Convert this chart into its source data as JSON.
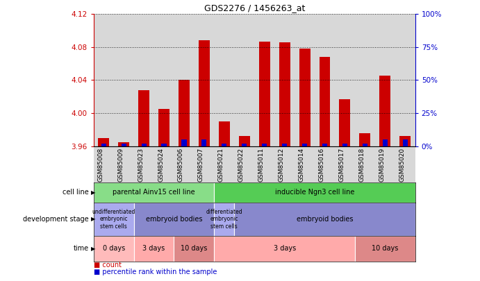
{
  "title": "GDS2276 / 1456263_at",
  "samples": [
    "GSM85008",
    "GSM85009",
    "GSM85023",
    "GSM85024",
    "GSM85006",
    "GSM85007",
    "GSM85021",
    "GSM85022",
    "GSM85011",
    "GSM85012",
    "GSM85014",
    "GSM85016",
    "GSM85017",
    "GSM85018",
    "GSM85019",
    "GSM85020"
  ],
  "counts": [
    3.97,
    3.965,
    4.028,
    4.005,
    4.04,
    4.088,
    3.99,
    3.972,
    4.087,
    4.086,
    4.078,
    4.068,
    4.017,
    3.976,
    4.045,
    3.972
  ],
  "percentiles": [
    2,
    2,
    2,
    2,
    5,
    5,
    2,
    2,
    2,
    2,
    2,
    2,
    2,
    2,
    5,
    5
  ],
  "ylim_left": [
    3.96,
    4.12
  ],
  "ylim_right": [
    0,
    100
  ],
  "yticks_left": [
    3.96,
    4.0,
    4.04,
    4.08,
    4.12
  ],
  "yticks_right": [
    0,
    25,
    50,
    75,
    100
  ],
  "bar_color": "#cc0000",
  "percentile_color": "#0000cc",
  "bg_color": "#d8d8d8",
  "cell_lines": [
    {
      "label": "parental Ainv15 cell line",
      "start": 0,
      "end": 6,
      "color": "#88dd88"
    },
    {
      "label": "inducible Ngn3 cell line",
      "start": 6,
      "end": 16,
      "color": "#55cc55"
    }
  ],
  "dev_stages": [
    {
      "label": "undifferentiated\nembryonic\nstem cells",
      "start": 0,
      "end": 2,
      "color": "#aaaaee"
    },
    {
      "label": "embryoid bodies",
      "start": 2,
      "end": 6,
      "color": "#8888cc"
    },
    {
      "label": "differentiated\nembryonic\nstem cells",
      "start": 6,
      "end": 7,
      "color": "#aaaaee"
    },
    {
      "label": "embryoid bodies",
      "start": 7,
      "end": 16,
      "color": "#8888cc"
    }
  ],
  "times": [
    {
      "label": "0 days",
      "start": 0,
      "end": 2,
      "color": "#ffbbbb"
    },
    {
      "label": "3 days",
      "start": 2,
      "end": 4,
      "color": "#ffaaaa"
    },
    {
      "label": "10 days",
      "start": 4,
      "end": 6,
      "color": "#dd8888"
    },
    {
      "label": "3 days",
      "start": 6,
      "end": 13,
      "color": "#ffaaaa"
    },
    {
      "label": "10 days",
      "start": 13,
      "end": 16,
      "color": "#dd8888"
    }
  ],
  "row_labels": [
    "cell line",
    "development stage",
    "time"
  ],
  "left_label_color": "#cc0000",
  "right_label_color": "#0000cc"
}
